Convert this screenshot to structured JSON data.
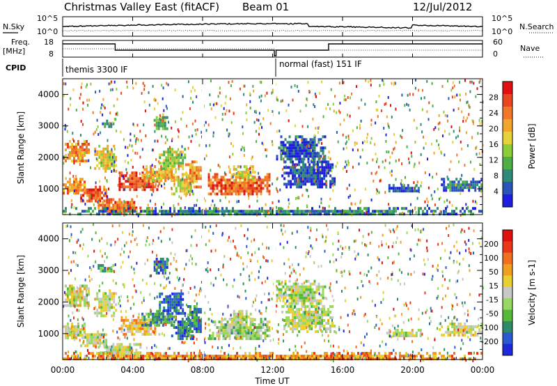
{
  "header": {
    "title": "Christmas Valley East (fitACF)",
    "beam": "Beam 01",
    "date": "12/Jul/2012"
  },
  "strips": {
    "nsky_label": "N.Sky",
    "nsky_ticks": [
      "10^5",
      "10^0"
    ],
    "nsearch_label": "N.Search",
    "nsearch_ticks": [
      "10^5",
      "10^0"
    ],
    "freq_label": "Freq.",
    "freq_unit": "[MHz]",
    "freq_ticks": [
      "18",
      "8"
    ],
    "nave_label": "Nave",
    "nave_ticks": [
      "60",
      "0"
    ],
    "cpid_label": "CPID",
    "cpid_segments": [
      "themis 3300 IF",
      "normal (fast) 151 IF"
    ]
  },
  "chart_data": [
    {
      "type": "heatmap",
      "name": "power",
      "ylabel": "Slant Range [km]",
      "yticks": [
        "4000",
        "3000",
        "2000",
        "1000"
      ],
      "ylim": [
        180,
        4500
      ],
      "xlim": [
        0,
        24
      ],
      "colorbar_label": "Power [dB]",
      "colorbar_ticks": [
        "28",
        "24",
        "20",
        "16",
        "12",
        "8",
        "4"
      ],
      "colorbar_colors": [
        "#1e1ee0",
        "#2b54b8",
        "#2f8a78",
        "#4fae48",
        "#8ccd3a",
        "#e7d23a",
        "#f0a52c",
        "#f07828",
        "#e8461e",
        "#e01010"
      ],
      "bands": [
        {
          "x": [
            0.0,
            1.5
          ],
          "y": [
            1850,
            2550
          ],
          "level": 0.7
        },
        {
          "x": [
            0.0,
            1.2
          ],
          "y": [
            850,
            1350
          ],
          "level": 0.75
        },
        {
          "x": [
            1.0,
            2.5
          ],
          "y": [
            600,
            1100
          ],
          "level": 0.85
        },
        {
          "x": [
            2.0,
            4.5
          ],
          "y": [
            200,
            700
          ],
          "level": 0.8
        },
        {
          "x": [
            1.8,
            3.0
          ],
          "y": [
            1600,
            2400
          ],
          "level": 0.55
        },
        {
          "x": [
            2.0,
            2.9
          ],
          "y": [
            2950,
            3200
          ],
          "level": 0.25
        },
        {
          "x": [
            3.2,
            5.5
          ],
          "y": [
            950,
            1550
          ],
          "level": 0.9
        },
        {
          "x": [
            4.5,
            6.5
          ],
          "y": [
            1250,
            1750
          ],
          "level": 0.65
        },
        {
          "x": [
            5.5,
            7.0
          ],
          "y": [
            1600,
            2300
          ],
          "level": 0.45
        },
        {
          "x": [
            5.2,
            6.0
          ],
          "y": [
            2900,
            3400
          ],
          "level": 0.35
        },
        {
          "x": [
            6.2,
            7.4
          ],
          "y": [
            800,
            1500
          ],
          "level": 0.6
        },
        {
          "x": [
            7.0,
            8.0
          ],
          "y": [
            1100,
            1900
          ],
          "level": 0.7
        },
        {
          "x": [
            8.3,
            11.8
          ],
          "y": [
            800,
            1500
          ],
          "level": 0.82
        },
        {
          "x": [
            9.5,
            11.0
          ],
          "y": [
            1300,
            1750
          ],
          "level": 0.55
        },
        {
          "x": [
            12.2,
            15.0
          ],
          "y": [
            1900,
            2700
          ],
          "level": 0.1
        },
        {
          "x": [
            12.5,
            15.5
          ],
          "y": [
            1100,
            1900
          ],
          "level": 0.08
        },
        {
          "x": [
            18.5,
            20.5
          ],
          "y": [
            900,
            1150
          ],
          "level": 0.1
        },
        {
          "x": [
            21.5,
            24.0
          ],
          "y": [
            950,
            1350
          ],
          "level": 0.2
        },
        {
          "x": [
            0.0,
            24.0
          ],
          "y": [
            180,
            420
          ],
          "level": 0.2
        }
      ],
      "scatter_density": 0.008
    },
    {
      "type": "heatmap",
      "name": "velocity",
      "ylabel": "Slant Range [km]",
      "yticks": [
        "4000",
        "3000",
        "2000",
        "1000"
      ],
      "ylim": [
        180,
        4500
      ],
      "xlim": [
        0,
        24
      ],
      "colorbar_label": "Velocity [m s-1]",
      "colorbar_ticks": [
        "200",
        "100",
        "50",
        "15",
        "-15",
        "-50",
        "-100",
        "-200"
      ],
      "colorbar_colors": [
        "#1e2ad8",
        "#2a5ad0",
        "#2f8a6a",
        "#58b83c",
        "#98d860",
        "#c8c8c8",
        "#e8d030",
        "#f0a020",
        "#f07020",
        "#e83818",
        "#e01010"
      ],
      "bands": [
        {
          "x": [
            0.0,
            1.5
          ],
          "y": [
            1850,
            2550
          ],
          "level": 0.5
        },
        {
          "x": [
            0.0,
            1.2
          ],
          "y": [
            850,
            1350
          ],
          "level": 0.5
        },
        {
          "x": [
            1.0,
            2.5
          ],
          "y": [
            600,
            1100
          ],
          "level": 0.5
        },
        {
          "x": [
            2.0,
            4.5
          ],
          "y": [
            200,
            700
          ],
          "level": 0.5
        },
        {
          "x": [
            1.8,
            3.0
          ],
          "y": [
            1600,
            2400
          ],
          "level": 0.5
        },
        {
          "x": [
            2.0,
            2.9
          ],
          "y": [
            2950,
            3200
          ],
          "level": 0.3
        },
        {
          "x": [
            3.2,
            5.5
          ],
          "y": [
            950,
            1550
          ],
          "level": 0.65
        },
        {
          "x": [
            4.5,
            6.5
          ],
          "y": [
            1250,
            1750
          ],
          "level": 0.25
        },
        {
          "x": [
            5.5,
            7.0
          ],
          "y": [
            1600,
            2300
          ],
          "level": 0.1
        },
        {
          "x": [
            5.2,
            6.0
          ],
          "y": [
            2900,
            3400
          ],
          "level": 0.1
        },
        {
          "x": [
            6.2,
            7.4
          ],
          "y": [
            800,
            1500
          ],
          "level": 0.15
        },
        {
          "x": [
            7.0,
            8.0
          ],
          "y": [
            1100,
            1900
          ],
          "level": 0.2
        },
        {
          "x": [
            8.3,
            11.8
          ],
          "y": [
            800,
            1500
          ],
          "level": 0.4
        },
        {
          "x": [
            9.5,
            11.0
          ],
          "y": [
            1300,
            1750
          ],
          "level": 0.45
        },
        {
          "x": [
            12.2,
            15.0
          ],
          "y": [
            1900,
            2700
          ],
          "level": 0.45
        },
        {
          "x": [
            12.5,
            15.5
          ],
          "y": [
            1100,
            1900
          ],
          "level": 0.48
        },
        {
          "x": [
            18.5,
            20.5
          ],
          "y": [
            900,
            1150
          ],
          "level": 0.5
        },
        {
          "x": [
            21.5,
            24.0
          ],
          "y": [
            950,
            1350
          ],
          "level": 0.5
        },
        {
          "x": [
            0.0,
            24.0
          ],
          "y": [
            180,
            420
          ],
          "level": 0.75
        }
      ],
      "scatter_density": 0.008
    }
  ],
  "xaxis": {
    "label": "Time UT",
    "ticks": [
      "00:00",
      "04:00",
      "08:00",
      "12:00",
      "16:00",
      "20:00",
      "00:00"
    ]
  }
}
